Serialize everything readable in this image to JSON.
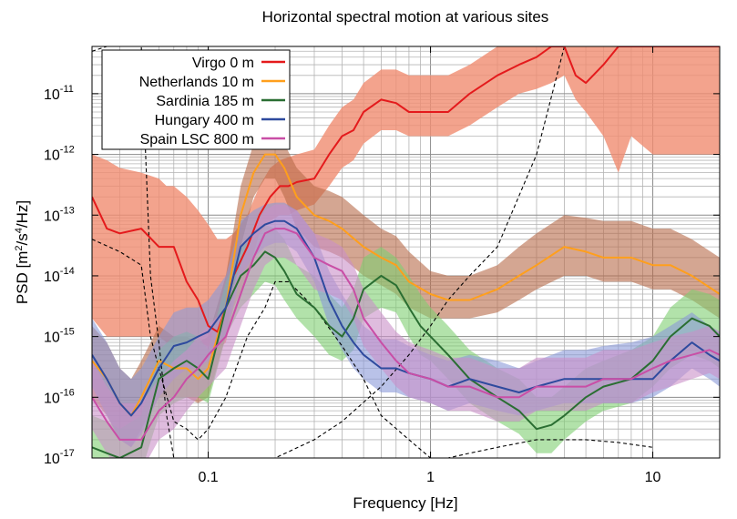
{
  "chart_data": {
    "type": "line",
    "title": "Horizontal spectral motion at various sites",
    "xlabel": "Frequency [Hz]",
    "ylabel": "PSD [m²/s⁴/Hz]",
    "xscale": "log",
    "yscale": "log",
    "xlim": [
      0.03,
      20
    ],
    "ylim": [
      1e-17,
      6e-11
    ],
    "grid": true,
    "legend_position": "top-left",
    "x_ticks": [
      {
        "value": 0.1,
        "label": "0.1"
      },
      {
        "value": 1,
        "label": "1"
      },
      {
        "value": 10,
        "label": "10"
      }
    ],
    "y_ticks": [
      {
        "value": 1e-17,
        "base": "10",
        "exp": "-17"
      },
      {
        "value": 1e-16,
        "base": "10",
        "exp": "-16"
      },
      {
        "value": 1e-15,
        "base": "10",
        "exp": "-15"
      },
      {
        "value": 1e-14,
        "base": "10",
        "exp": "-14"
      },
      {
        "value": 1e-13,
        "base": "10",
        "exp": "-13"
      },
      {
        "value": 1e-12,
        "base": "10",
        "exp": "-12"
      },
      {
        "value": 1e-11,
        "base": "10",
        "exp": "-11"
      }
    ],
    "series": [
      {
        "name": "Virgo 0 m",
        "color": "#e41a1c",
        "band_color": "#f08c70",
        "x": [
          0.03,
          0.035,
          0.04,
          0.05,
          0.06,
          0.065,
          0.07,
          0.08,
          0.09,
          0.1,
          0.11,
          0.12,
          0.13,
          0.15,
          0.17,
          0.19,
          0.21,
          0.23,
          0.25,
          0.3,
          0.35,
          0.4,
          0.45,
          0.5,
          0.6,
          0.7,
          0.8,
          1.0,
          1.2,
          1.5,
          2.0,
          2.5,
          3.0,
          3.5,
          4.0,
          4.5,
          5.0,
          6.0,
          7.0,
          8.0,
          10.0,
          12.0,
          15.0,
          20.0
        ],
        "y": [
          2e-13,
          6e-14,
          5e-14,
          6e-14,
          3e-14,
          3e-14,
          3e-14,
          8e-15,
          4e-15,
          1.5e-15,
          1.2e-15,
          3e-15,
          1e-14,
          3e-14,
          1e-13,
          2e-13,
          3e-13,
          3e-13,
          3.5e-13,
          4e-13,
          1e-12,
          2e-12,
          2.5e-12,
          5e-12,
          8e-12,
          7e-12,
          5e-12,
          5e-12,
          5e-12,
          1e-11,
          2e-11,
          3e-11,
          4e-11,
          6e-11,
          6e-11,
          2e-11,
          1.5e-11,
          3e-11,
          6e-11,
          6e-11,
          6e-11,
          6e-11,
          6e-11,
          6e-11
        ],
        "band_lo": [
          2e-15,
          1e-15,
          1e-15,
          1e-15,
          1e-15,
          8e-16,
          8e-16,
          8e-16,
          8e-16,
          7e-16,
          6e-16,
          8e-16,
          3e-15,
          1e-14,
          5e-14,
          8e-14,
          1e-13,
          1e-13,
          1.2e-13,
          1.5e-13,
          3e-13,
          6e-13,
          8e-13,
          1.5e-12,
          2.5e-12,
          2.5e-12,
          2e-12,
          2e-12,
          2e-12,
          3e-12,
          6e-12,
          1e-11,
          1.2e-11,
          1.5e-11,
          2e-11,
          8e-12,
          5e-12,
          2e-12,
          5e-13,
          2e-12,
          1e-12,
          1e-12,
          1e-12,
          1e-12
        ],
        "band_hi": [
          1e-12,
          8e-13,
          6e-13,
          5e-13,
          4e-13,
          3e-13,
          3e-13,
          2e-13,
          1.2e-13,
          7e-14,
          4e-14,
          4e-14,
          5e-14,
          1e-13,
          3e-13,
          6e-13,
          8e-13,
          9e-13,
          1e-12,
          1.2e-12,
          3e-12,
          6e-12,
          8e-12,
          1.5e-11,
          2.5e-11,
          2.5e-11,
          2e-11,
          2e-11,
          2e-11,
          3e-11,
          6e-11,
          6e-11,
          6e-11,
          6e-11,
          6e-11,
          6e-11,
          6e-11,
          6e-11,
          6e-11,
          6e-11,
          6e-11,
          6e-11,
          6e-11,
          6e-11
        ]
      },
      {
        "name": "Netherlands 10 m",
        "color": "#ff9f1c",
        "band_color": "#b86a4a",
        "x": [
          0.03,
          0.035,
          0.04,
          0.045,
          0.05,
          0.06,
          0.07,
          0.08,
          0.09,
          0.1,
          0.12,
          0.14,
          0.16,
          0.18,
          0.2,
          0.22,
          0.25,
          0.3,
          0.35,
          0.4,
          0.5,
          0.6,
          0.7,
          0.8,
          1.0,
          1.2,
          1.5,
          2.0,
          2.5,
          3.0,
          4.0,
          5.0,
          6.0,
          8.0,
          10.0,
          12.0,
          15.0,
          20.0
        ],
        "y": [
          4e-16,
          2e-16,
          8e-17,
          5e-17,
          1e-16,
          4e-16,
          3e-16,
          3e-16,
          2e-16,
          3e-16,
          3e-15,
          1e-13,
          5e-13,
          1e-12,
          1e-12,
          6e-13,
          2e-13,
          1e-13,
          8e-14,
          6e-14,
          3e-14,
          2e-14,
          1.5e-14,
          8e-15,
          5e-15,
          4e-15,
          4e-15,
          6e-15,
          1e-14,
          1.5e-14,
          3e-14,
          2.5e-14,
          2e-14,
          2e-14,
          1.5e-14,
          1.5e-14,
          1e-14,
          5e-15
        ],
        "band_lo": [
          1e-16,
          5e-17,
          2e-17,
          1.5e-17,
          3e-17,
          1e-16,
          1e-16,
          1e-16,
          8e-17,
          1e-16,
          1e-15,
          3e-14,
          2e-13,
          4e-13,
          4e-13,
          2e-13,
          6e-14,
          3e-14,
          2.5e-14,
          2e-14,
          1e-14,
          7e-15,
          5e-15,
          3e-15,
          2e-15,
          2e-15,
          2e-15,
          2.5e-15,
          4e-15,
          6e-15,
          1e-14,
          1e-14,
          8e-15,
          8e-15,
          6e-15,
          6e-15,
          4e-15,
          2e-15
        ],
        "band_hi": [
          1.5e-15,
          8e-16,
          3e-16,
          2e-16,
          4e-16,
          1.5e-15,
          1e-15,
          1e-15,
          8e-16,
          1e-15,
          1e-14,
          3e-13,
          1.5e-12,
          2.5e-12,
          2.5e-12,
          1.5e-12,
          6e-13,
          3e-13,
          2.5e-13,
          2e-13,
          1e-13,
          6e-14,
          4.5e-14,
          2.5e-14,
          1.2e-14,
          1e-14,
          1e-14,
          1.5e-14,
          3e-14,
          5e-14,
          1e-13,
          9e-14,
          8e-14,
          8e-14,
          6e-14,
          6e-14,
          4e-14,
          2e-14
        ]
      },
      {
        "name": "Sardinia 185 m",
        "color": "#2a6e32",
        "band_color": "#7fcf72",
        "x": [
          0.03,
          0.035,
          0.04,
          0.05,
          0.06,
          0.07,
          0.08,
          0.09,
          0.1,
          0.12,
          0.14,
          0.16,
          0.18,
          0.2,
          0.22,
          0.25,
          0.3,
          0.35,
          0.4,
          0.45,
          0.5,
          0.6,
          0.7,
          0.8,
          0.9,
          1.0,
          1.2,
          1.5,
          2.0,
          2.5,
          3.0,
          3.5,
          4.0,
          5.0,
          6.0,
          8.0,
          10.0,
          12.0,
          15.0,
          18.0,
          20.0
        ],
        "y": [
          1.5e-17,
          1.2e-17,
          1e-17,
          1.5e-17,
          2e-16,
          3e-16,
          4e-16,
          3e-16,
          2e-16,
          3e-15,
          1e-14,
          1.5e-14,
          2.5e-14,
          2e-14,
          1.2e-14,
          5e-15,
          3e-15,
          1.5e-15,
          1e-15,
          2e-15,
          6e-15,
          1e-14,
          7e-15,
          3e-15,
          1.5e-15,
          1e-15,
          5e-16,
          2e-16,
          1e-16,
          6e-17,
          3e-17,
          3.5e-17,
          5e-17,
          1e-16,
          1.5e-16,
          2e-16,
          4e-16,
          1e-15,
          2e-15,
          1.5e-15,
          1e-15
        ],
        "band_lo": [
          5e-18,
          5e-18,
          5e-18,
          6e-18,
          5e-17,
          8e-17,
          1e-16,
          1e-16,
          8e-17,
          1e-15,
          3e-15,
          5e-15,
          8e-15,
          7e-15,
          4e-15,
          2e-15,
          1e-15,
          5e-16,
          4e-16,
          6e-16,
          2e-15,
          3e-15,
          2.5e-15,
          1e-15,
          5e-16,
          4e-16,
          2e-16,
          8e-17,
          4e-17,
          2.5e-17,
          1.2e-17,
          1.2e-17,
          2e-17,
          4e-17,
          6e-17,
          8e-17,
          1.5e-16,
          3e-16,
          5e-16,
          4e-16,
          3e-16
        ],
        "band_hi": [
          5e-17,
          4e-17,
          3e-17,
          5e-17,
          6e-16,
          1e-15,
          1.2e-15,
          1e-15,
          6e-16,
          8e-15,
          3e-14,
          4e-14,
          7e-14,
          6e-14,
          4e-14,
          1.5e-14,
          1e-14,
          5e-15,
          3e-15,
          6e-15,
          2e-14,
          3e-14,
          2e-14,
          1e-14,
          5e-15,
          3e-15,
          1.5e-15,
          6e-16,
          3e-16,
          2e-16,
          1e-16,
          1e-16,
          1.5e-16,
          3e-16,
          4e-16,
          6e-16,
          1e-15,
          3e-15,
          6e-15,
          5e-15,
          4e-15
        ]
      },
      {
        "name": "Hungary 400 m",
        "color": "#2e4a9e",
        "band_color": "#8a9ad8",
        "x": [
          0.03,
          0.035,
          0.04,
          0.045,
          0.05,
          0.06,
          0.07,
          0.08,
          0.09,
          0.1,
          0.12,
          0.14,
          0.16,
          0.18,
          0.2,
          0.22,
          0.25,
          0.3,
          0.35,
          0.4,
          0.45,
          0.5,
          0.6,
          0.7,
          0.8,
          1.0,
          1.2,
          1.5,
          2.0,
          2.5,
          3.0,
          4.0,
          5.0,
          6.0,
          8.0,
          10.0,
          12.0,
          15.0,
          18.0,
          20.0
        ],
        "y": [
          5e-16,
          2e-16,
          8e-17,
          5e-17,
          8e-17,
          3e-16,
          7e-16,
          8e-16,
          1e-15,
          1.2e-15,
          3e-15,
          3e-14,
          5e-14,
          7e-14,
          8e-14,
          8e-14,
          6e-14,
          2e-14,
          4e-15,
          1.5e-15,
          8e-16,
          5e-16,
          3e-16,
          3e-16,
          2.5e-16,
          2e-16,
          1.5e-16,
          2e-16,
          1.5e-16,
          1.2e-16,
          1.5e-16,
          2e-16,
          2e-16,
          2e-16,
          2e-16,
          2e-16,
          4e-16,
          8e-16,
          5e-16,
          4e-16
        ],
        "band_lo": [
          1.5e-16,
          5e-17,
          2e-17,
          1.5e-17,
          2.5e-17,
          1e-16,
          2e-16,
          3e-16,
          3e-16,
          4e-16,
          1e-15,
          1e-14,
          2e-14,
          3e-14,
          3.5e-14,
          3.5e-14,
          2.5e-14,
          8e-15,
          1.5e-15,
          6e-16,
          3e-16,
          2e-16,
          1.2e-16,
          1.2e-16,
          1e-16,
          8e-17,
          6e-17,
          8e-17,
          6e-17,
          5e-17,
          6e-17,
          8e-17,
          8e-17,
          8e-17,
          8e-17,
          1e-16,
          1.5e-16,
          3e-16,
          2e-16,
          1.5e-16
        ],
        "band_hi": [
          2e-15,
          8e-16,
          3e-16,
          2e-16,
          3e-16,
          1e-15,
          2.5e-15,
          3e-15,
          3e-15,
          4e-15,
          1e-14,
          8e-14,
          1.2e-13,
          1.5e-13,
          1.6e-13,
          1.6e-13,
          1.2e-13,
          5e-14,
          1.2e-14,
          5e-15,
          2.5e-15,
          1.5e-15,
          9e-16,
          9e-16,
          7e-16,
          5e-16,
          4e-16,
          5e-16,
          4e-16,
          3e-16,
          4e-16,
          6e-16,
          6e-16,
          7e-16,
          8e-16,
          1e-15,
          1.5e-15,
          2.5e-15,
          1.5e-15,
          1.2e-15
        ]
      },
      {
        "name": "Spain LSC 800 m",
        "color": "#c94ea6",
        "band_color": "#c98fc8",
        "x": [
          0.03,
          0.035,
          0.04,
          0.05,
          0.06,
          0.07,
          0.08,
          0.09,
          0.1,
          0.12,
          0.14,
          0.16,
          0.18,
          0.2,
          0.22,
          0.25,
          0.3,
          0.35,
          0.4,
          0.45,
          0.5,
          0.6,
          0.7,
          0.8,
          1.0,
          1.2,
          1.5,
          2.0,
          2.5,
          3.0,
          4.0,
          5.0,
          6.0,
          8.0,
          10.0,
          12.0,
          15.0,
          18.0,
          20.0
        ],
        "y": [
          1e-16,
          4e-17,
          2e-17,
          2e-17,
          6e-17,
          1e-16,
          2e-16,
          3e-16,
          5e-16,
          1e-15,
          5e-15,
          2e-14,
          5e-14,
          6e-14,
          6e-14,
          5e-14,
          2e-14,
          1.5e-14,
          1.2e-14,
          6e-15,
          2e-15,
          8e-16,
          4e-16,
          2.5e-16,
          2e-16,
          1.5e-16,
          1.5e-16,
          1e-16,
          1e-16,
          1.5e-16,
          1.5e-16,
          1.5e-16,
          2e-16,
          2e-16,
          3e-16,
          4e-16,
          5e-16,
          6e-16,
          5e-16
        ],
        "band_lo": [
          3e-17,
          1.2e-17,
          6e-18,
          6e-18,
          2e-17,
          3e-17,
          6e-17,
          1e-16,
          1.5e-16,
          3e-16,
          1.5e-15,
          6e-15,
          1.5e-14,
          2e-14,
          2e-14,
          1.5e-14,
          6e-15,
          5e-15,
          4e-15,
          2e-15,
          7e-16,
          3e-16,
          1.5e-16,
          1e-16,
          8e-17,
          6e-17,
          6e-17,
          4e-17,
          4e-17,
          6e-17,
          6e-17,
          6e-17,
          8e-17,
          8e-17,
          1.2e-16,
          1.5e-16,
          2e-16,
          2.5e-16,
          2e-16
        ],
        "band_hi": [
          4e-16,
          1.5e-16,
          8e-17,
          8e-17,
          2e-16,
          4e-16,
          6e-16,
          1e-15,
          1.5e-15,
          3e-15,
          1.5e-14,
          6e-14,
          1.2e-13,
          1.5e-13,
          1.5e-13,
          1.2e-13,
          5e-14,
          4e-14,
          3e-14,
          1.5e-14,
          6e-15,
          2.5e-15,
          1.2e-15,
          8e-16,
          6e-16,
          4.5e-16,
          4.5e-16,
          3e-16,
          3e-16,
          4.5e-16,
          4.5e-16,
          4.5e-16,
          6e-16,
          6e-16,
          8e-16,
          1e-15,
          1.2e-15,
          1.5e-15,
          1.2e-15
        ]
      }
    ],
    "reference_lines": [
      {
        "style": "dashed",
        "color": "#000000",
        "x": [
          0.03,
          0.035,
          0.04,
          0.05,
          0.055,
          0.06,
          0.065,
          0.07,
          0.08,
          0.09,
          0.1,
          0.15,
          0.2,
          0.3,
          0.4,
          0.6,
          0.8,
          1.0,
          1.2,
          1.5,
          2.0,
          3.0,
          4.0
        ],
        "y": [
          5e-11,
          6e-11,
          6e-11,
          6e-11,
          1e-14,
          8e-16,
          5e-17,
          1e-17,
          1e-17,
          1e-17,
          1e-17,
          1e-17,
          1e-17,
          2e-17,
          4e-17,
          1.5e-16,
          5e-16,
          1.5e-15,
          4e-15,
          1e-14,
          3e-14,
          1e-12,
          6e-11
        ]
      },
      {
        "style": "dashed",
        "color": "#000000",
        "x": [
          0.03,
          0.04,
          0.05,
          0.055,
          0.06,
          0.07,
          0.08,
          0.09,
          0.1,
          0.12,
          0.15,
          0.18,
          0.2,
          0.23,
          0.3,
          0.4,
          0.5,
          0.6,
          0.8,
          1.0,
          1.2,
          1.5,
          2.0,
          3.0,
          5.0,
          7.0,
          10.0
        ],
        "y": [
          4e-14,
          2.5e-14,
          1.5e-14,
          1e-15,
          3e-16,
          4e-17,
          3e-17,
          2e-17,
          3e-17,
          1e-16,
          1e-15,
          3e-15,
          8e-15,
          8e-15,
          3e-15,
          7e-16,
          2e-16,
          5e-17,
          2e-17,
          1e-17,
          1e-17,
          1.2e-17,
          1.5e-17,
          2e-17,
          2e-17,
          1.8e-17,
          1.5e-17
        ]
      }
    ]
  }
}
